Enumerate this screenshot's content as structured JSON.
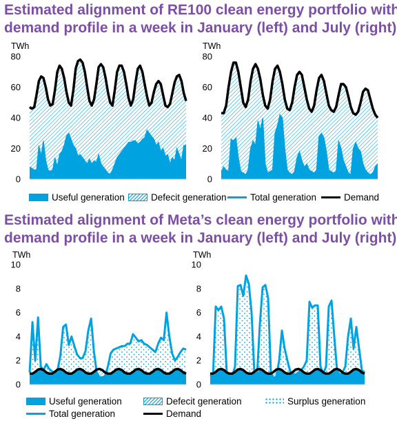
{
  "titles": {
    "top": [
      "Estimated alignment of RE100 clean energy portfolio with",
      "demand profile in a week in January (left) and July (right)"
    ],
    "bottom": [
      "Estimated alignment of Meta’s clean energy portfolio with",
      "demand profile in a week in January (left) and July (right)"
    ]
  },
  "legend_top": {
    "useful": "Useful generation",
    "deficit": "Defecit generation",
    "total": "Total generation",
    "demand": "Demand"
  },
  "legend_bottom": {
    "useful": "Useful generation",
    "deficit": "Defecit generation",
    "surplus": "Surplus generation",
    "total": "Total generation",
    "demand": "Demand"
  },
  "colors": {
    "generation": "#00a3e0",
    "demand": "#000000",
    "title": "#7b4fa6",
    "axis_text": "#000000"
  },
  "chart_data": [
    {
      "type": "area",
      "panel": "RE100 January",
      "ylabel": "TWh",
      "ylim": [
        0,
        80
      ],
      "yticks": [
        0,
        20,
        40,
        60,
        80
      ],
      "grid": false,
      "series": [
        {
          "name": "Demand",
          "values": [
            47,
            46,
            47,
            55,
            64,
            67,
            66,
            60,
            52,
            48,
            49,
            58,
            70,
            74,
            72,
            66,
            57,
            50,
            48,
            58,
            72,
            77,
            78,
            76,
            70,
            60,
            51,
            48,
            52,
            62,
            73,
            75,
            73,
            66,
            57,
            50,
            48,
            58,
            70,
            74,
            74,
            70,
            62,
            53,
            48,
            52,
            63,
            72,
            74,
            70,
            62,
            54,
            48,
            50,
            57,
            62,
            64,
            62,
            55,
            48,
            47,
            49,
            56,
            63,
            67,
            68,
            64,
            56,
            51
          ]
        },
        {
          "name": "Useful generation",
          "values": [
            8,
            7,
            6,
            6,
            22,
            15,
            25,
            12,
            6,
            5,
            6,
            14,
            8,
            16,
            18,
            22,
            28,
            30,
            26,
            22,
            20,
            15,
            16,
            14,
            12,
            10,
            13,
            10,
            12,
            11,
            16,
            10,
            8,
            6,
            4,
            3,
            6,
            10,
            14,
            16,
            18,
            20,
            22,
            24,
            24,
            25,
            25,
            23,
            24,
            26,
            27,
            32,
            30,
            28,
            26,
            22,
            24,
            18,
            20,
            15,
            16,
            10,
            14,
            12,
            20,
            16,
            12,
            22,
            22
          ]
        },
        {
          "name": "Defecit generation"
        },
        {
          "name": "Total generation"
        }
      ]
    },
    {
      "type": "area",
      "panel": "RE100 July",
      "ylabel": "TWh",
      "ylim": [
        0,
        80
      ],
      "yticks": [
        0,
        20,
        40,
        60,
        80
      ],
      "grid": false,
      "series": [
        {
          "name": "Demand",
          "values": [
            43,
            43,
            48,
            60,
            70,
            76,
            76,
            70,
            60,
            50,
            47,
            52,
            64,
            72,
            75,
            72,
            65,
            55,
            48,
            46,
            52,
            64,
            72,
            74,
            70,
            62,
            52,
            46,
            45,
            50,
            60,
            68,
            70,
            68,
            60,
            52,
            46,
            44,
            48,
            58,
            66,
            68,
            64,
            56,
            48,
            45,
            44,
            47,
            55,
            62,
            62,
            60,
            54,
            47,
            43,
            42,
            44,
            50,
            57,
            59,
            58,
            52,
            46,
            42,
            40
          ]
        },
        {
          "name": "Useful generation",
          "values": [
            5,
            8,
            6,
            5,
            26,
            25,
            27,
            14,
            5,
            4,
            3,
            6,
            20,
            25,
            22,
            38,
            32,
            40,
            10,
            4,
            5,
            6,
            30,
            35,
            42,
            40,
            20,
            6,
            4,
            3,
            5,
            14,
            18,
            12,
            8,
            10,
            6,
            5,
            4,
            6,
            28,
            30,
            27,
            18,
            6,
            5,
            4,
            5,
            25,
            20,
            12,
            8,
            4,
            3,
            20,
            24,
            20,
            18,
            10,
            6,
            4,
            3,
            4,
            8,
            10
          ]
        },
        {
          "name": "Defecit generation"
        },
        {
          "name": "Total generation"
        }
      ]
    },
    {
      "type": "area",
      "panel": "Meta January",
      "ylabel": "TWh",
      "ylim": [
        0,
        10
      ],
      "yticks": [
        0,
        2,
        4,
        6,
        8,
        10
      ],
      "grid": false,
      "series": [
        {
          "name": "Demand",
          "values": [
            0.9,
            0.9,
            1.05,
            1.25,
            1.3,
            1.2,
            1.0,
            0.9,
            0.9,
            1.05,
            1.25,
            1.3,
            1.2,
            1.0,
            0.9,
            0.9,
            1.05,
            1.25,
            1.3,
            1.2,
            1.0,
            0.9,
            0.9,
            1.05,
            1.25,
            1.3,
            1.2,
            1.0,
            0.9,
            0.9,
            1.05,
            1.25,
            1.3,
            1.2,
            1.0,
            0.9,
            0.9,
            1.05,
            1.25,
            1.3,
            1.2,
            1.0,
            0.9,
            0.9,
            1.05,
            1.25,
            1.3,
            1.2,
            1.0,
            0.9,
            0.9,
            1.05,
            1.25,
            1.3,
            1.2,
            1.0,
            0.9
          ]
        },
        {
          "name": "Total generation",
          "values": [
            1.0,
            5.2,
            2.0,
            5.6,
            1.5,
            1.2,
            1.7,
            1.3,
            1.1,
            1.0,
            1.2,
            2.4,
            4.8,
            5.0,
            3.3,
            4.0,
            3.2,
            2.5,
            2.2,
            2.2,
            2.8,
            4.5,
            5.5,
            2.8,
            1.0,
            0.6,
            0.6,
            0.7,
            1.5,
            2.6,
            2.9,
            3.0,
            3.1,
            3.2,
            3.2,
            3.4,
            3.4,
            4.2,
            3.9,
            3.6,
            3.7,
            3.4,
            3.3,
            3.1,
            2.9,
            2.7,
            3.4,
            3.9,
            3.7,
            6.0,
            4.0,
            2.6,
            2.0,
            2.3,
            2.7,
            3.0,
            2.9
          ]
        },
        {
          "name": "Useful generation"
        },
        {
          "name": "Defecit generation"
        },
        {
          "name": "Surplus generation"
        }
      ]
    },
    {
      "type": "area",
      "panel": "Meta July",
      "ylabel": "TWh",
      "ylim": [
        0,
        10
      ],
      "yticks": [
        0,
        2,
        4,
        6,
        8,
        10
      ],
      "grid": false,
      "series": [
        {
          "name": "Demand",
          "values": [
            0.9,
            0.9,
            1.05,
            1.25,
            1.3,
            1.2,
            1.0,
            0.9,
            0.9,
            1.05,
            1.25,
            1.3,
            1.2,
            1.0,
            0.9,
            0.9,
            1.05,
            1.25,
            1.3,
            1.2,
            1.0,
            0.9,
            0.9,
            1.05,
            1.25,
            1.3,
            1.2,
            1.0,
            0.9,
            0.9,
            1.05,
            1.25,
            1.3,
            1.2,
            1.0,
            0.9,
            0.9,
            1.05,
            1.25,
            1.3,
            1.2,
            1.0,
            0.9,
            0.9,
            1.05,
            1.25,
            1.3,
            1.2,
            1.0,
            0.9,
            0.9,
            1.05,
            1.25,
            1.3,
            1.2,
            1.0,
            0.9
          ]
        },
        {
          "name": "Total generation",
          "values": [
            0.8,
            0.6,
            6.5,
            6.2,
            6.5,
            5.5,
            1.0,
            0.8,
            0.7,
            1.5,
            8.2,
            8.3,
            7.4,
            9.1,
            8.4,
            6.0,
            1.0,
            0.8,
            5.0,
            8.1,
            8.3,
            7.2,
            1.0,
            0.5,
            0.7,
            2.0,
            4.5,
            3.0,
            2.0,
            1.1,
            0.9,
            0.8,
            1.0,
            1.2,
            1.5,
            2.0,
            6.9,
            6.4,
            6.6,
            6.6,
            1.5,
            0.9,
            1.5,
            6.5,
            7.0,
            4.0,
            1.2,
            0.8,
            1.0,
            1.5,
            4.0,
            5.5,
            3.0,
            4.8,
            3.0,
            1.2,
            1.0
          ]
        },
        {
          "name": "Useful generation"
        },
        {
          "name": "Defecit generation"
        },
        {
          "name": "Surplus generation"
        }
      ]
    }
  ]
}
